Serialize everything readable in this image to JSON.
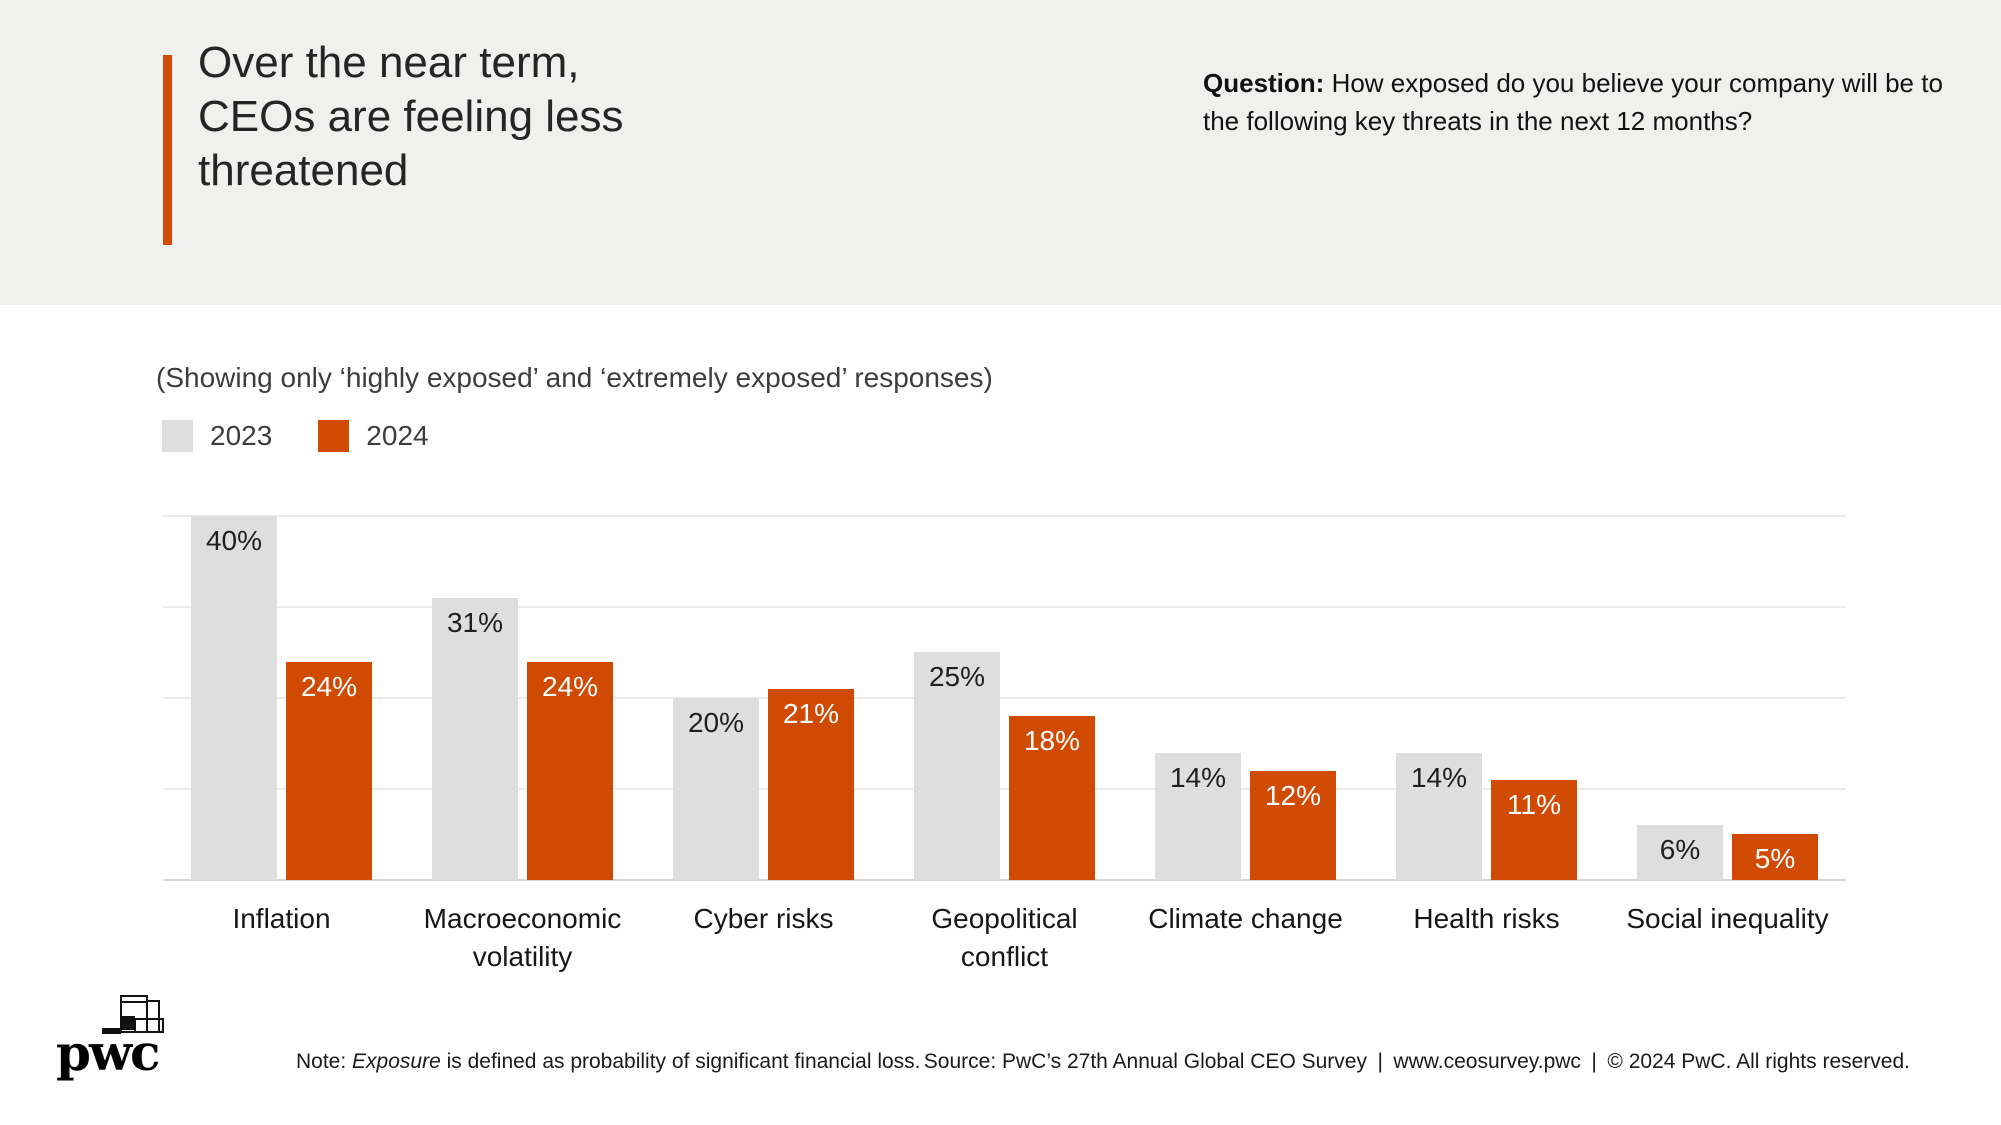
{
  "header": {
    "title": "Over the near term,\nCEOs are feeling less\nthreatened",
    "question_label": "Question:",
    "question_text": " How exposed do you believe your company will be to the following key threats in the next 12 months?"
  },
  "subtitle": "(Showing only ‘highly exposed’ and ‘extremely exposed’ responses)",
  "chart_data": {
    "type": "bar",
    "categories": [
      "Inflation",
      "Macroeconomic volatility",
      "Cyber risks",
      "Geopolitical conflict",
      "Climate change",
      "Health risks",
      "Social inequality"
    ],
    "series": [
      {
        "name": "2023",
        "color": "#DEDEDE",
        "values": [
          40,
          31,
          20,
          25,
          14,
          14,
          6
        ]
      },
      {
        "name": "2024",
        "color": "#D04A02",
        "values": [
          24,
          24,
          21,
          18,
          12,
          11,
          5
        ]
      }
    ],
    "value_suffix": "%",
    "title": "",
    "xlabel": "",
    "ylabel": "",
    "ylim": [
      0,
      40
    ],
    "gridlines": [
      0,
      10,
      20,
      30,
      40
    ],
    "grid": true,
    "legend_position": "top-left",
    "value_labels": "inside-top"
  },
  "footer": {
    "logo_text": "pwc",
    "note_label": "Note: ",
    "note_italic": "Exposure",
    "note_rest": " is defined as probability of significant financial loss.",
    "source": "Source: PwC’s 27th Annual Global CEO Survey | www.ceosurvey.pwc | © 2024 PwC. All rights reserved."
  },
  "colors": {
    "accent_orange": "#D04A02",
    "bar_gray": "#DEDEDE",
    "header_band": "#F0F0EE",
    "gridline": "#ECECEA",
    "axis_line": "#D8D8D6",
    "title_text": "#252525",
    "body_text": "#1A1A1A"
  }
}
